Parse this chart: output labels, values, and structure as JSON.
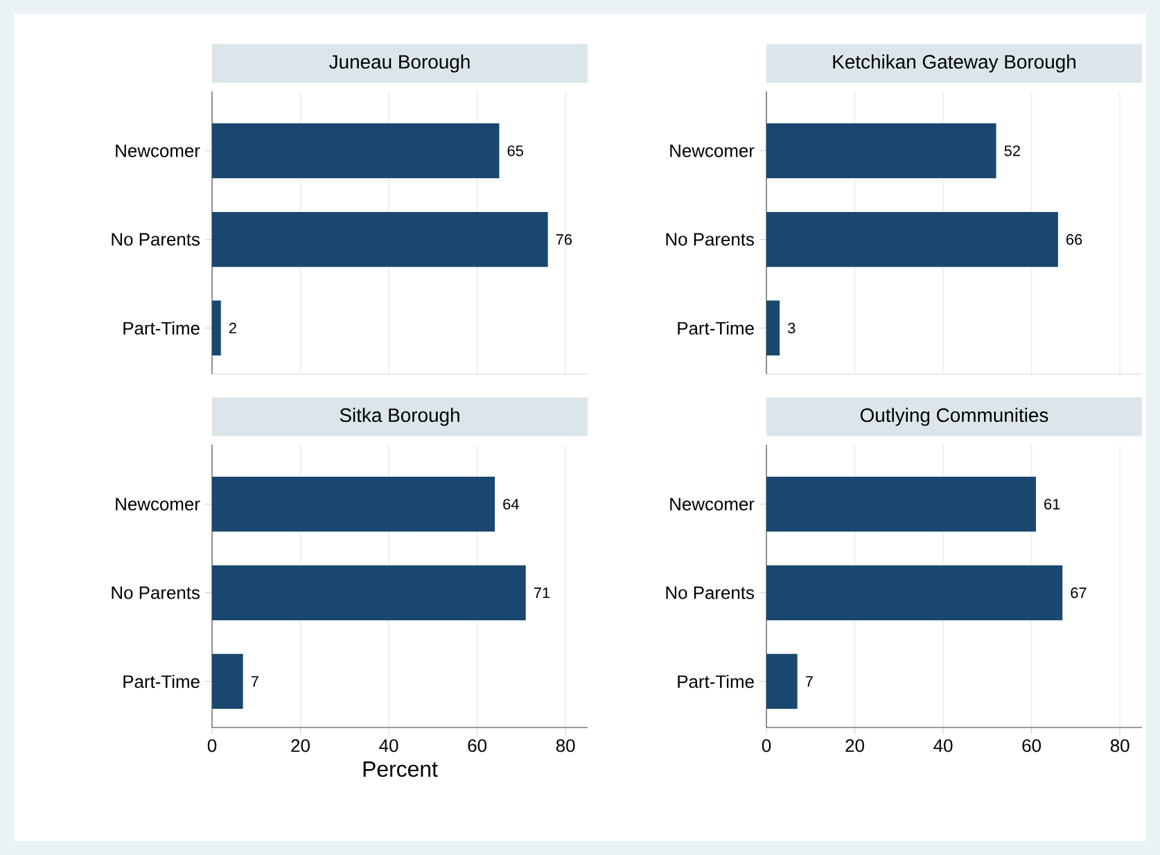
{
  "chart_data": [
    {
      "type": "bar",
      "orientation": "horizontal",
      "title": "Juneau Borough",
      "categories": [
        "Newcomer",
        "No Parents",
        "Part-Time"
      ],
      "values": [
        65,
        76,
        2
      ],
      "color": "#1a476f",
      "xlim": [
        0,
        85
      ],
      "xticks": [
        0,
        20,
        40,
        60,
        80
      ],
      "grid": "x",
      "data_labels": true,
      "tick_labels": "y"
    },
    {
      "type": "bar",
      "orientation": "horizontal",
      "title": "Ketchikan Gateway Borough",
      "categories": [
        "Newcomer",
        "No Parents",
        "Part-Time"
      ],
      "values": [
        52,
        66,
        3
      ],
      "color": "#1a476f",
      "xlim": [
        0,
        85
      ],
      "xticks": [
        0,
        20,
        40,
        60,
        80
      ],
      "grid": "x",
      "data_labels": true,
      "tick_labels": "y"
    },
    {
      "type": "bar",
      "orientation": "horizontal",
      "title": "Sitka Borough",
      "xlabel": "Percent",
      "categories": [
        "Newcomer",
        "No Parents",
        "Part-Time"
      ],
      "values": [
        64,
        71,
        7
      ],
      "color": "#1a476f",
      "xlim": [
        0,
        85
      ],
      "xticks": [
        0,
        20,
        40,
        60,
        80
      ],
      "grid": "x",
      "data_labels": true
    },
    {
      "type": "bar",
      "orientation": "horizontal",
      "title": "Outlying Communities",
      "categories": [
        "Newcomer",
        "No Parents",
        "Part-Time"
      ],
      "values": [
        61,
        67,
        7
      ],
      "color": "#1a476f",
      "xlim": [
        0,
        85
      ],
      "xticks": [
        0,
        20,
        40,
        60,
        80
      ],
      "grid": "x",
      "data_labels": true
    }
  ]
}
